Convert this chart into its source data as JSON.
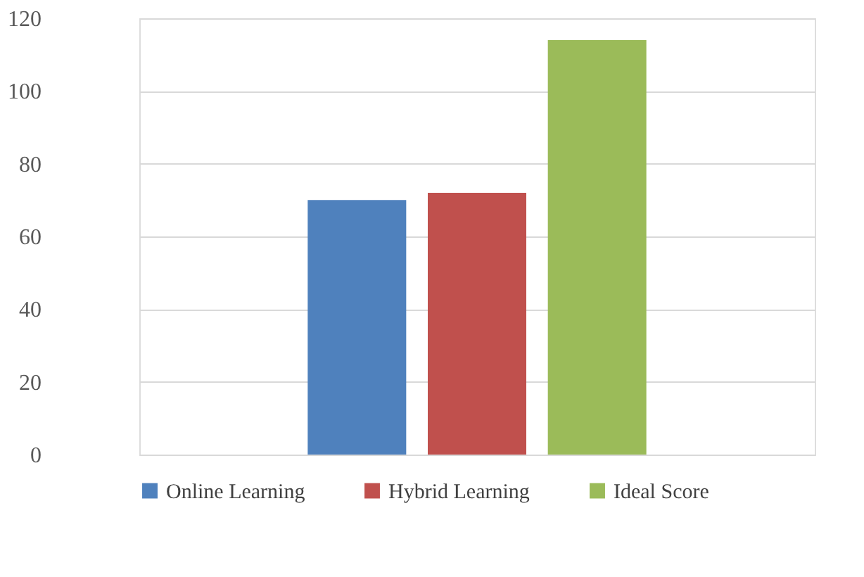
{
  "chart_data": {
    "type": "bar",
    "categories": [
      null
    ],
    "series": [
      {
        "name": "Online Learning",
        "color": "#4f81bd",
        "values": [
          70
        ]
      },
      {
        "name": "Hybrid Learning",
        "color": "#c0504d",
        "values": [
          72
        ]
      },
      {
        "name": "Ideal Score",
        "color": "#9bbb59",
        "values": [
          114
        ]
      }
    ],
    "ylim": [
      0,
      120
    ],
    "yticks": [
      0,
      20,
      40,
      60,
      80,
      100,
      120
    ],
    "grid": "y",
    "legend": "bottom",
    "tick_labels": "y"
  }
}
